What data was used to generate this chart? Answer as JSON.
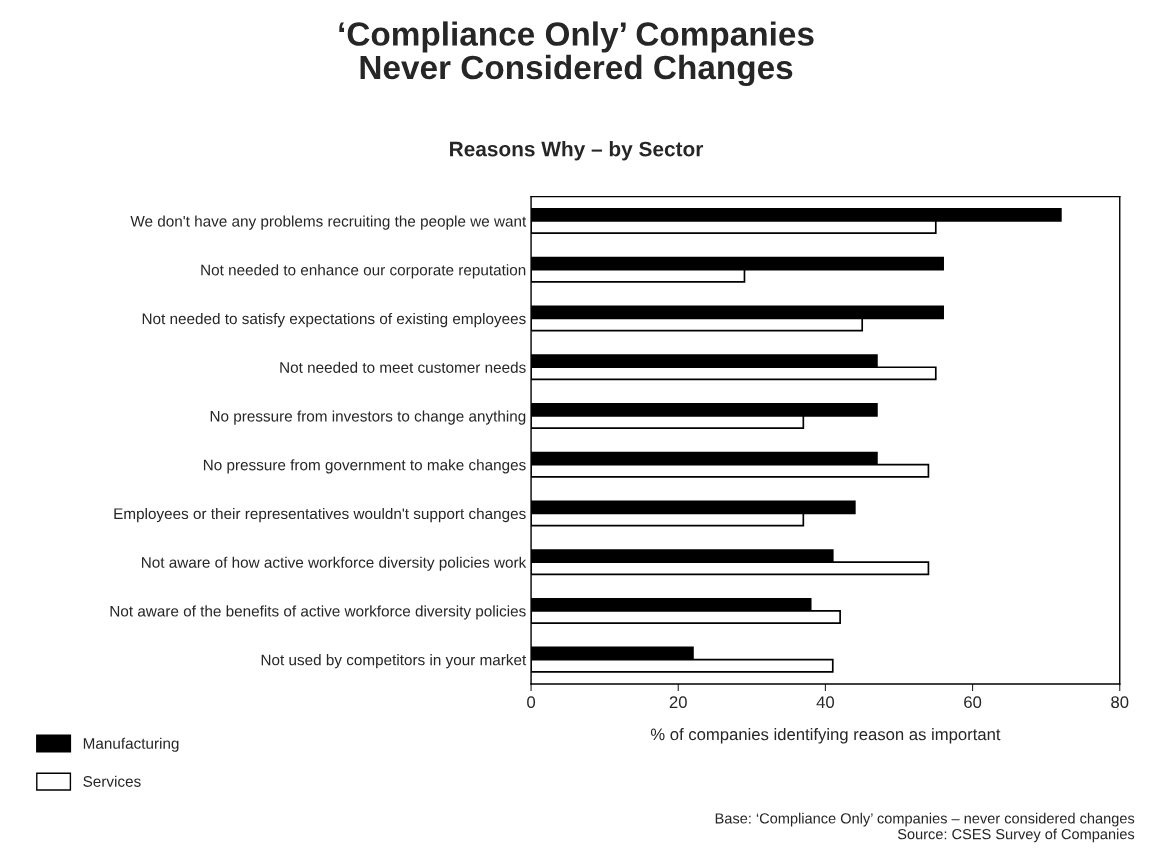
{
  "chart_data": {
    "type": "bar",
    "orientation": "horizontal",
    "title": "‘Compliance Only’ Companies\nNever Considered Changes",
    "subtitle": "Reasons Why – by Sector",
    "xlabel": "% of companies identifying reason as important",
    "categories": [
      "We don't have any problems recruiting the people we want",
      "Not needed to enhance our corporate reputation",
      "Not needed to satisfy expectations of existing employees",
      "Not needed to meet customer needs",
      "No pressure from investors to change anything",
      "No pressure from government to make changes",
      "Employees or their representatives wouldn't support changes",
      "Not aware of how active workforce diversity policies work",
      "Not aware of the benefits of active workforce diversity policies",
      "Not used by competitors in your market"
    ],
    "series": [
      {
        "name": "Manufacturing",
        "color": "#000000",
        "values": [
          72,
          56,
          56,
          47,
          47,
          47,
          44,
          41,
          38,
          22
        ]
      },
      {
        "name": "Services",
        "color": "#ffffff",
        "values": [
          55,
          29,
          45,
          55,
          37,
          54,
          37,
          54,
          42,
          41
        ]
      }
    ],
    "xlim": [
      0,
      80
    ],
    "xticks": [
      0,
      20,
      40,
      60,
      80
    ],
    "grid": false,
    "legend": "bottom left",
    "annotations": [
      "Base: ‘Compliance Only’ companies – never considered changes\nSource: CSES Survey of Companies"
    ]
  }
}
